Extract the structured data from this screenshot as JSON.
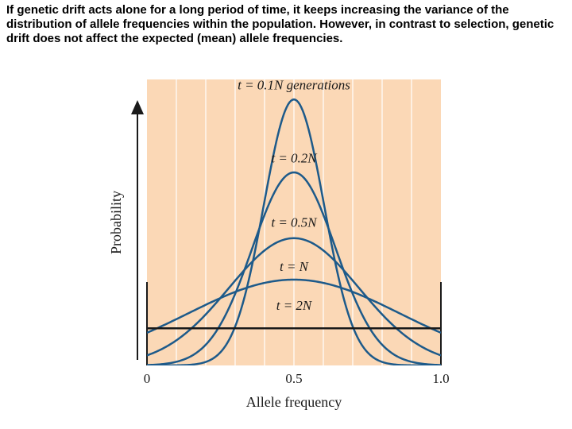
{
  "caption": "If genetic drift acts alone for a long period of time, it keeps increasing the variance of the distribution of allele frequencies within the population. However, in contrast to selection, genetic drift does not affect the expected (mean) allele frequencies.",
  "colors": {
    "background": "#fbd8b6",
    "grid": "#ffffff",
    "curve": "#1d5a8a",
    "flat_line": "#1a1a1a",
    "text": "#1a1a1a"
  },
  "chart_data": {
    "type": "line",
    "title": "",
    "xlabel": "Allele frequency",
    "ylabel": "Probability",
    "xlim": [
      0,
      1
    ],
    "ylim": [
      0,
      1
    ],
    "x_tick_labels": [
      {
        "value": 0,
        "label": "0"
      },
      {
        "value": 0.5,
        "label": "0.5"
      },
      {
        "value": 1,
        "label": "1.0"
      }
    ],
    "vertical_gridlines": [
      0.1,
      0.2,
      0.3,
      0.4,
      0.5,
      0.6,
      0.7,
      0.8,
      0.9
    ],
    "grid": true,
    "series": [
      {
        "name": "t = 0.1N generations",
        "mean": 0.5,
        "sd": 0.102,
        "peak": 0.93,
        "label_x": 0.5,
        "label_y": 0.965
      },
      {
        "name": "t = 0.2N",
        "mean": 0.5,
        "sd": 0.142,
        "peak": 0.675,
        "label_x": 0.5,
        "label_y": 0.71
      },
      {
        "name": "t = 0.5N",
        "mean": 0.5,
        "sd": 0.222,
        "peak": 0.445,
        "label_x": 0.5,
        "label_y": 0.485
      },
      {
        "name": "t = N",
        "mean": 0.5,
        "sd": 0.36,
        "peak": 0.3,
        "label_x": 0.5,
        "label_y": 0.33
      },
      {
        "name": "t = 2N",
        "flat": true,
        "value": 0.13,
        "label_x": 0.5,
        "label_y": 0.195
      }
    ]
  }
}
